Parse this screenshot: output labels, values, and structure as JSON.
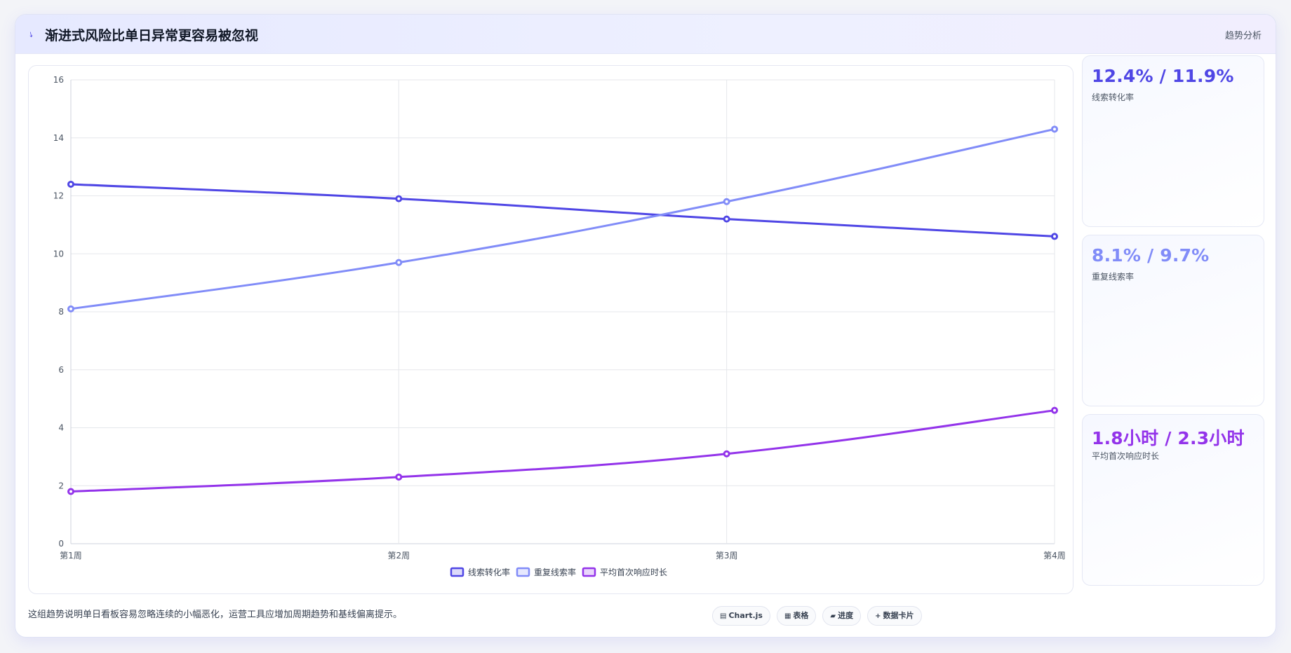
{
  "header": {
    "logo_glyph": "⭏",
    "title": "渐进式风险比单日异常更容易被忽视",
    "tag": "趋势分析"
  },
  "stats": [
    {
      "value": "12.4% / 11.9%",
      "label": "线索转化率",
      "color": "#4f46e5"
    },
    {
      "value": "8.1% / 9.7%",
      "label": "重复线索率",
      "color": "#818cf8"
    },
    {
      "value": "1.8小时 / 2.3小时",
      "label": "平均首次响应时长",
      "color": "#9333ea"
    }
  ],
  "note": "这组趋势说明单日看板容易忽略连续的小幅恶化，运营工具应增加周期趋势和基线偏离提示。",
  "chips": [
    {
      "icon": "chart-icon",
      "glyph": "▤",
      "label": "Chart.js"
    },
    {
      "icon": "table-icon",
      "glyph": "▦",
      "label": "表格"
    },
    {
      "icon": "progress-icon",
      "glyph": "▰",
      "label": "进度"
    },
    {
      "icon": "card-icon",
      "glyph": "+",
      "label": "数据卡片"
    }
  ],
  "chart_data": {
    "type": "line",
    "categories": [
      "第1周",
      "第2周",
      "第3周",
      "第4周"
    ],
    "ylim": [
      0,
      16
    ],
    "yticks": [
      0,
      2,
      4,
      6,
      8,
      10,
      12,
      14,
      16
    ],
    "grid": true,
    "legend_position": "bottom",
    "series": [
      {
        "name": "线索转化率",
        "values": [
          12.4,
          11.9,
          11.2,
          10.6
        ],
        "color": "#4f46e5"
      },
      {
        "name": "重复线索率",
        "values": [
          8.1,
          9.7,
          11.8,
          14.3
        ],
        "color": "#818cf8"
      },
      {
        "name": "平均首次响应时长",
        "values": [
          1.8,
          2.3,
          3.1,
          4.6
        ],
        "color": "#9333ea"
      }
    ]
  }
}
